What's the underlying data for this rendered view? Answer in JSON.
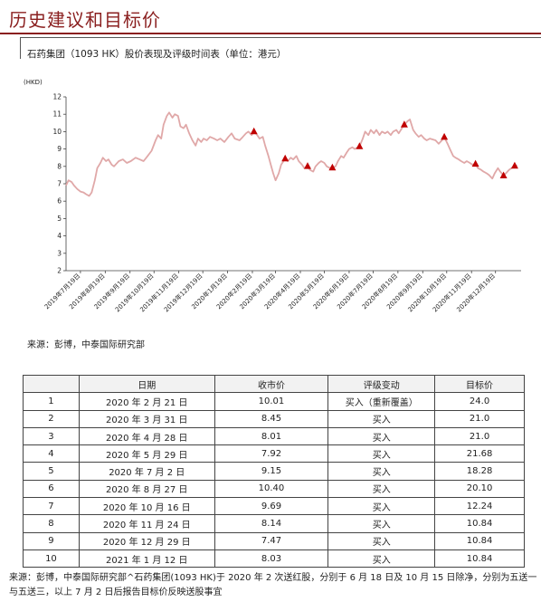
{
  "page": {
    "title": "历史建议和目标价"
  },
  "chart_section": {
    "heading": "石药集团（1093 HK）股价表现及评级时间表（单位：港元）",
    "source": "来源：彭博，中泰国际研究部"
  },
  "chart_data": {
    "type": "line",
    "unit_label": "(HKD)",
    "ylim": [
      2,
      12
    ],
    "y_ticks": [
      2,
      3,
      4,
      5,
      6,
      7,
      8,
      9,
      10,
      11,
      12
    ],
    "x_ticks": [
      "2019年7月19日",
      "2019年8月19日",
      "2019年9月19日",
      "2019年10月19日",
      "2019年11月19日",
      "2019年12月19日",
      "2020年1月19日",
      "2020年2月19日",
      "2020年3月19日",
      "2020年4月19日",
      "2020年5月19日",
      "2020年6月19日",
      "2020年7月19日",
      "2020年8月19日",
      "2020年9月19日",
      "2020年10月19日",
      "2020年11月19日",
      "2020年12月19日"
    ],
    "x_range": [
      "2019-07-01",
      "2021-01-20"
    ],
    "series": [
      {
        "color": "#e0a8a8",
        "points": [
          [
            "2019-07-01",
            6.9
          ],
          [
            "2019-07-04",
            7.2
          ],
          [
            "2019-07-08",
            7.1
          ],
          [
            "2019-07-11",
            6.9
          ],
          [
            "2019-07-15",
            6.7
          ],
          [
            "2019-07-19",
            6.55
          ],
          [
            "2019-07-23",
            6.5
          ],
          [
            "2019-07-26",
            6.4
          ],
          [
            "2019-07-30",
            6.3
          ],
          [
            "2019-08-02",
            6.5
          ],
          [
            "2019-08-06",
            7.2
          ],
          [
            "2019-08-09",
            7.9
          ],
          [
            "2019-08-13",
            8.2
          ],
          [
            "2019-08-16",
            8.5
          ],
          [
            "2019-08-20",
            8.3
          ],
          [
            "2019-08-23",
            8.4
          ],
          [
            "2019-08-27",
            8.1
          ],
          [
            "2019-08-30",
            8.0
          ],
          [
            "2019-09-05",
            8.3
          ],
          [
            "2019-09-10",
            8.4
          ],
          [
            "2019-09-15",
            8.2
          ],
          [
            "2019-09-20",
            8.3
          ],
          [
            "2019-09-26",
            8.5
          ],
          [
            "2019-10-01",
            8.4
          ],
          [
            "2019-10-06",
            8.3
          ],
          [
            "2019-10-11",
            8.6
          ],
          [
            "2019-10-16",
            8.9
          ],
          [
            "2019-10-21",
            9.5
          ],
          [
            "2019-10-24",
            9.8
          ],
          [
            "2019-10-28",
            9.6
          ],
          [
            "2019-10-31",
            10.4
          ],
          [
            "2019-11-04",
            10.9
          ],
          [
            "2019-11-07",
            11.1
          ],
          [
            "2019-11-11",
            10.8
          ],
          [
            "2019-11-14",
            11.0
          ],
          [
            "2019-11-18",
            10.9
          ],
          [
            "2019-11-21",
            10.3
          ],
          [
            "2019-11-25",
            10.2
          ],
          [
            "2019-11-28",
            10.4
          ],
          [
            "2019-12-02",
            9.9
          ],
          [
            "2019-12-06",
            9.5
          ],
          [
            "2019-12-10",
            9.2
          ],
          [
            "2019-12-13",
            9.6
          ],
          [
            "2019-12-17",
            9.4
          ],
          [
            "2019-12-20",
            9.6
          ],
          [
            "2019-12-24",
            9.5
          ],
          [
            "2019-12-28",
            9.7
          ],
          [
            "2020-01-02",
            9.6
          ],
          [
            "2020-01-06",
            9.5
          ],
          [
            "2020-01-10",
            9.6
          ],
          [
            "2020-01-15",
            9.4
          ],
          [
            "2020-01-20",
            9.7
          ],
          [
            "2020-01-24",
            9.9
          ],
          [
            "2020-01-28",
            9.6
          ],
          [
            "2020-02-03",
            9.5
          ],
          [
            "2020-02-07",
            9.7
          ],
          [
            "2020-02-11",
            9.9
          ],
          [
            "2020-02-14",
            10.0
          ],
          [
            "2020-02-18",
            9.8
          ],
          [
            "2020-02-21",
            10.01
          ],
          [
            "2020-02-25",
            9.8
          ],
          [
            "2020-02-28",
            9.6
          ],
          [
            "2020-03-03",
            9.7
          ],
          [
            "2020-03-06",
            9.2
          ],
          [
            "2020-03-10",
            8.6
          ],
          [
            "2020-03-13",
            8.1
          ],
          [
            "2020-03-16",
            7.6
          ],
          [
            "2020-03-19",
            7.2
          ],
          [
            "2020-03-23",
            7.6
          ],
          [
            "2020-03-26",
            8.1
          ],
          [
            "2020-03-31",
            8.45
          ],
          [
            "2020-04-03",
            8.3
          ],
          [
            "2020-04-07",
            8.5
          ],
          [
            "2020-04-10",
            8.4
          ],
          [
            "2020-04-14",
            8.6
          ],
          [
            "2020-04-17",
            8.3
          ],
          [
            "2020-04-21",
            8.1
          ],
          [
            "2020-04-24",
            7.9
          ],
          [
            "2020-04-28",
            8.01
          ],
          [
            "2020-05-01",
            7.8
          ],
          [
            "2020-05-05",
            7.7
          ],
          [
            "2020-05-08",
            8.0
          ],
          [
            "2020-05-12",
            8.2
          ],
          [
            "2020-05-15",
            8.3
          ],
          [
            "2020-05-19",
            8.2
          ],
          [
            "2020-05-22",
            8.0
          ],
          [
            "2020-05-26",
            7.9
          ],
          [
            "2020-05-29",
            7.92
          ],
          [
            "2020-06-02",
            8.0
          ],
          [
            "2020-06-05",
            8.3
          ],
          [
            "2020-06-09",
            8.6
          ],
          [
            "2020-06-12",
            8.5
          ],
          [
            "2020-06-16",
            8.8
          ],
          [
            "2020-06-19",
            9.0
          ],
          [
            "2020-06-23",
            9.1
          ],
          [
            "2020-06-26",
            9.0
          ],
          [
            "2020-07-02",
            9.15
          ],
          [
            "2020-07-06",
            9.6
          ],
          [
            "2020-07-09",
            10.0
          ],
          [
            "2020-07-13",
            9.8
          ],
          [
            "2020-07-16",
            10.1
          ],
          [
            "2020-07-20",
            9.9
          ],
          [
            "2020-07-23",
            10.1
          ],
          [
            "2020-07-27",
            9.8
          ],
          [
            "2020-07-30",
            10.0
          ],
          [
            "2020-08-03",
            9.9
          ],
          [
            "2020-08-06",
            10.0
          ],
          [
            "2020-08-10",
            9.8
          ],
          [
            "2020-08-13",
            10.0
          ],
          [
            "2020-08-17",
            10.1
          ],
          [
            "2020-08-20",
            9.9
          ],
          [
            "2020-08-24",
            10.2
          ],
          [
            "2020-08-27",
            10.4
          ],
          [
            "2020-08-31",
            10.6
          ],
          [
            "2020-09-03",
            10.7
          ],
          [
            "2020-09-07",
            10.1
          ],
          [
            "2020-09-10",
            9.9
          ],
          [
            "2020-09-14",
            9.7
          ],
          [
            "2020-09-17",
            9.8
          ],
          [
            "2020-09-21",
            9.6
          ],
          [
            "2020-09-24",
            9.5
          ],
          [
            "2020-09-28",
            9.6
          ],
          [
            "2020-10-05",
            9.5
          ],
          [
            "2020-10-09",
            9.3
          ],
          [
            "2020-10-13",
            9.5
          ],
          [
            "2020-10-16",
            9.69
          ],
          [
            "2020-10-20",
            9.3
          ],
          [
            "2020-10-23",
            9.0
          ],
          [
            "2020-10-27",
            8.6
          ],
          [
            "2020-10-30",
            8.5
          ],
          [
            "2020-11-03",
            8.4
          ],
          [
            "2020-11-06",
            8.3
          ],
          [
            "2020-11-10",
            8.2
          ],
          [
            "2020-11-13",
            8.3
          ],
          [
            "2020-11-17",
            8.2
          ],
          [
            "2020-11-20",
            8.1
          ],
          [
            "2020-11-24",
            8.14
          ],
          [
            "2020-11-27",
            7.9
          ],
          [
            "2020-12-01",
            7.8
          ],
          [
            "2020-12-04",
            7.7
          ],
          [
            "2020-12-08",
            7.6
          ],
          [
            "2020-12-11",
            7.5
          ],
          [
            "2020-12-15",
            7.3
          ],
          [
            "2020-12-18",
            7.6
          ],
          [
            "2020-12-22",
            7.9
          ],
          [
            "2020-12-25",
            7.7
          ],
          [
            "2020-12-29",
            7.47
          ],
          [
            "2021-01-01",
            7.6
          ],
          [
            "2021-01-05",
            7.8
          ],
          [
            "2021-01-08",
            7.9
          ],
          [
            "2021-01-12",
            8.03
          ],
          [
            "2021-01-15",
            8.05
          ]
        ]
      }
    ],
    "markers": {
      "shape": "triangle",
      "color": "#c00000",
      "points": [
        [
          "2020-02-21",
          10.01
        ],
        [
          "2020-03-31",
          8.45
        ],
        [
          "2020-04-28",
          8.01
        ],
        [
          "2020-05-29",
          7.92
        ],
        [
          "2020-07-02",
          9.15
        ],
        [
          "2020-08-27",
          10.4
        ],
        [
          "2020-10-16",
          9.69
        ],
        [
          "2020-11-24",
          8.14
        ],
        [
          "2020-12-29",
          7.47
        ],
        [
          "2021-01-12",
          8.03
        ]
      ]
    }
  },
  "table": {
    "headers": [
      "",
      "日期",
      "收市价",
      "评级变动",
      "目标价"
    ],
    "rows": [
      [
        "1",
        "2020 年 2 月 21 日",
        "10.01",
        "买入（重新覆盖）",
        "24.0"
      ],
      [
        "2",
        "2020 年 3 月 31 日",
        "8.45",
        "买入",
        "21.0"
      ],
      [
        "3",
        "2020 年 4 月 28 日",
        "8.01",
        "买入",
        "21.0"
      ],
      [
        "4",
        "2020 年 5 月 29 日",
        "7.92",
        "买入",
        "21.68"
      ],
      [
        "5",
        "2020 年 7 月 2 日",
        "9.15",
        "买入",
        "18.28"
      ],
      [
        "6",
        "2020 年 8 月 27 日",
        "10.40",
        "买入",
        "20.10"
      ],
      [
        "7",
        "2020 年 10 月 16 日",
        "9.69",
        "买入",
        "12.24"
      ],
      [
        "8",
        "2020 年 11 月 24 日",
        "8.14",
        "买入",
        "10.84"
      ],
      [
        "9",
        "2020 年 12 月 29 日",
        "7.47",
        "买入",
        "10.84"
      ],
      [
        "10",
        "2021 年 1 月 12 日",
        "8.03",
        "买入",
        "10.84"
      ]
    ],
    "note": "来源：彭博，中泰国际研究部^石药集团(1093 HK)于 2020 年 2 次送红股，分别于 6 月 18 日及 10 月 15 日除净，分别为五送一与五送三，以上 7 月 2 日后报告目标价反映送股事宜"
  }
}
